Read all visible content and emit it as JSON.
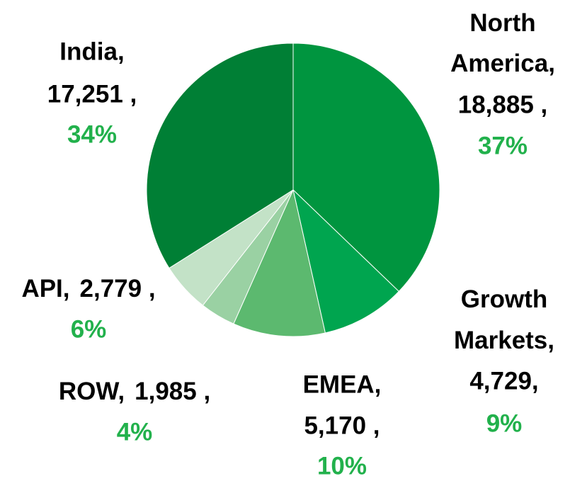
{
  "chart_data": {
    "type": "pie",
    "categories": [
      "North America,",
      "Growth Markets,",
      "EMEA,",
      "ROW,",
      "API,",
      "India,"
    ],
    "values": [
      18885,
      4729,
      5170,
      1985,
      2779,
      17251
    ],
    "value_labels": [
      "18,885 ,",
      "4,729,",
      "5,170 ,",
      "1,985 ,",
      "2,779 ,",
      "17,251 ,"
    ],
    "percent_labels": [
      "37%",
      "9%",
      "10%",
      "4%",
      "6%",
      "34%"
    ],
    "colors": [
      "#00953f",
      "#00a54f",
      "#5cb96f",
      "#9ad1a3",
      "#c3e2c7",
      "#007f35"
    ],
    "percent_color": "#22b14c"
  }
}
